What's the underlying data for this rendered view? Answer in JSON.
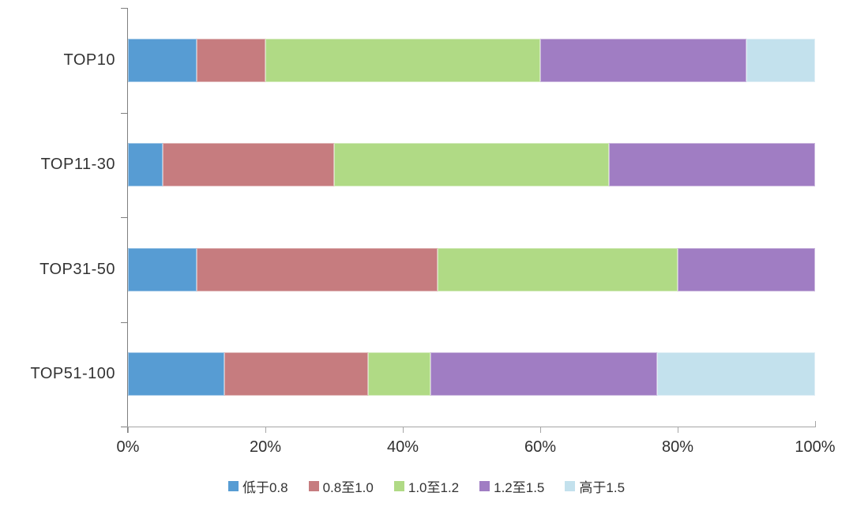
{
  "chart_data": {
    "type": "bar",
    "orientation": "horizontal",
    "stacked": true,
    "stacked_total": 100,
    "title": "",
    "categories": [
      "TOP10",
      "TOP11-30",
      "TOP31-50",
      "TOP51-100"
    ],
    "series": [
      {
        "name": "低于0.8",
        "color": "#579CD3",
        "values": [
          10,
          5,
          10,
          14
        ]
      },
      {
        "name": "0.8至1.0",
        "color": "#C67C7F",
        "values": [
          10,
          25,
          35,
          21
        ]
      },
      {
        "name": "1.0至1.2",
        "color": "#B0DA85",
        "values": [
          40,
          40,
          35,
          9
        ]
      },
      {
        "name": "1.2至1.5",
        "color": "#A07DC3",
        "values": [
          30,
          30,
          20,
          33
        ]
      },
      {
        "name": "高于1.5",
        "color": "#C3E1ED",
        "values": [
          10,
          0,
          0,
          23
        ]
      }
    ],
    "x_axis": {
      "min": 0,
      "max": 100,
      "tick_step": 20,
      "tick_labels": [
        "0%",
        "20%",
        "40%",
        "60%",
        "80%",
        "100%"
      ]
    },
    "legend": {
      "position": "bottom",
      "entries": [
        "低于0.8",
        "0.8至1.0",
        "1.0至1.2",
        "1.2至1.5",
        "高于1.5"
      ]
    },
    "grid": false
  },
  "colors": {
    "background": "#FFFFFF",
    "axis_vertical": "#7F7F7F",
    "axis_horizontal": "#A6A6A6",
    "label_text": "#333333"
  }
}
